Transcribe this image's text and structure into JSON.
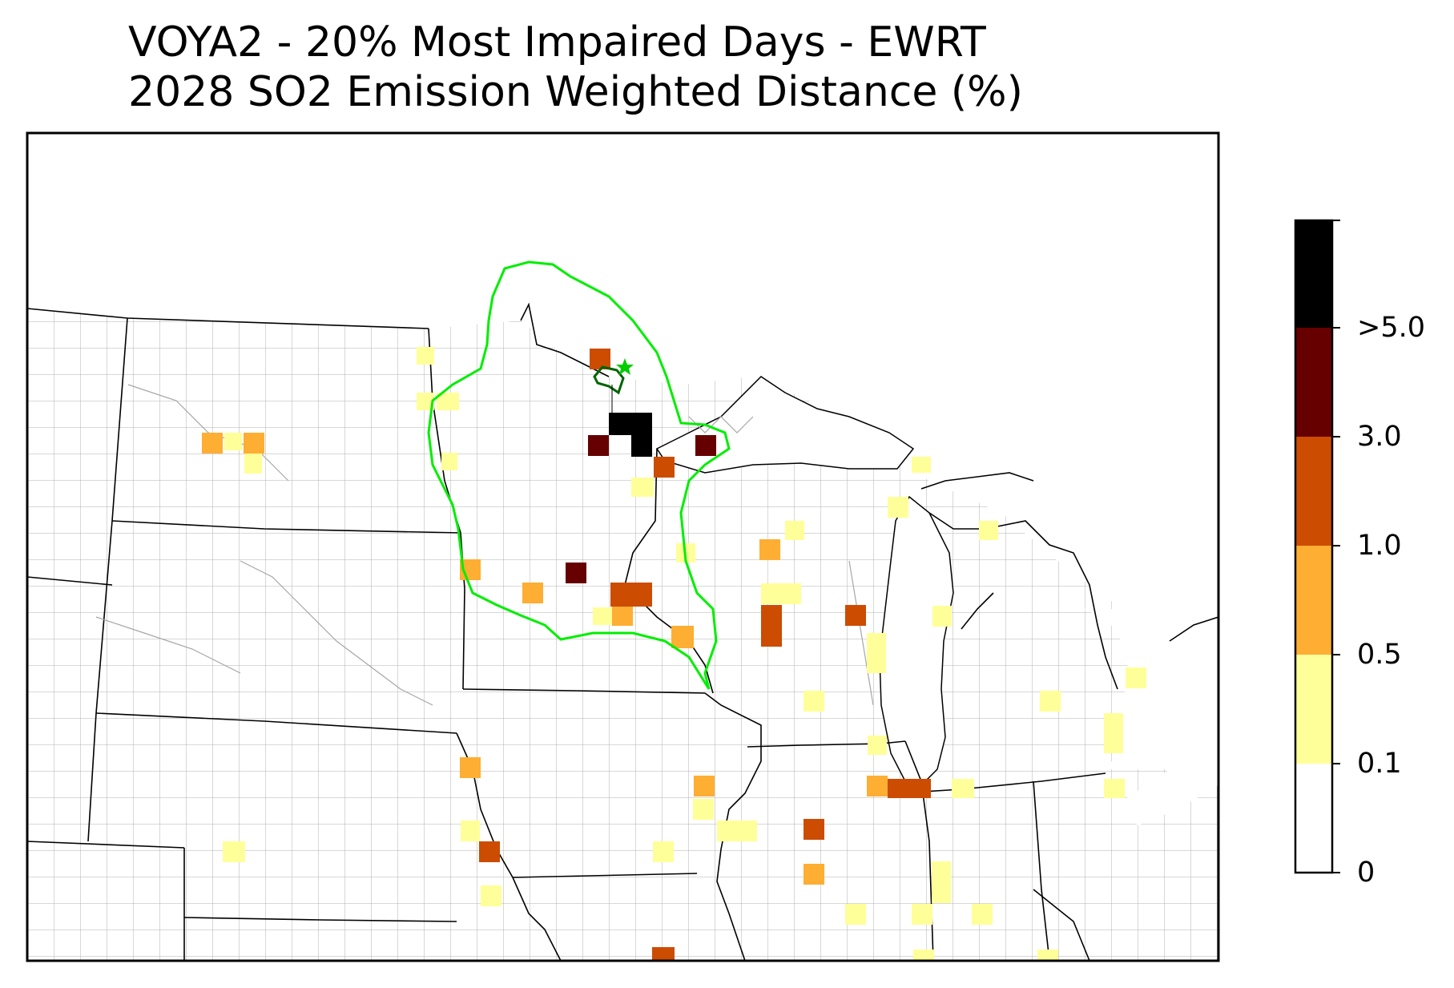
{
  "title": {
    "line1": "VOYA2 - 20% Most Impaired Days - EWRT",
    "line2": "2028 SO2 Emission Weighted Distance (%)"
  },
  "colorbar": {
    "bins": [
      {
        "label": "0",
        "color": "#ffffff"
      },
      {
        "label": "0.1",
        "color": "#ffff99"
      },
      {
        "label": "0.5",
        "color": "#fdae33"
      },
      {
        "label": "1.0",
        "color": "#cc4c02"
      },
      {
        "label": "3.0",
        "color": "#660000"
      },
      {
        "label": ">5.0",
        "color": "#000000"
      }
    ],
    "top_color": "#000000"
  },
  "colors": {
    "state_border": "#000000",
    "county_border": "#a6a6a6",
    "aoi_contour": "#00ee00",
    "class1_area_outline": "#006400",
    "site_marker": "#00cc00"
  },
  "map_features": {
    "region": "Upper Midwest / Great Lakes (MT, ND, SD, NE, MN, IA, WI, IL, MI, IN, OH)",
    "site_marker_icon": "star-icon"
  }
}
